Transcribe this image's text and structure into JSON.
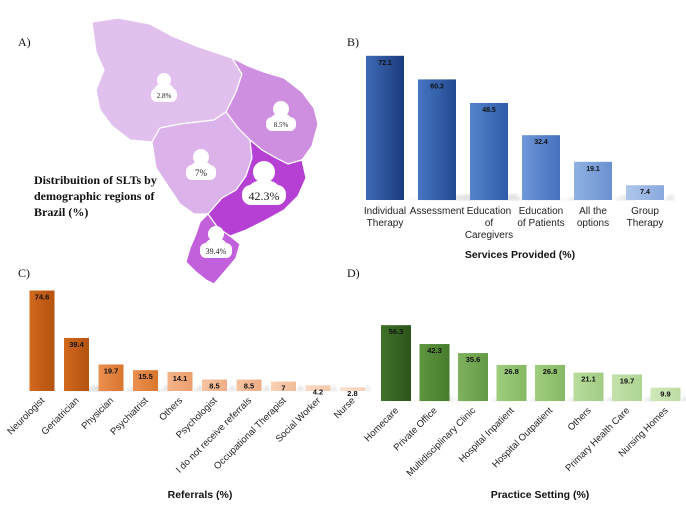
{
  "panels": {
    "a": "A)",
    "b": "B)",
    "c": "C)",
    "d": "D)"
  },
  "map": {
    "title_lines": [
      "Distribuition of SLTs by",
      "demographic regions of",
      "Brazil (%)"
    ],
    "regions": [
      {
        "name": "North",
        "label": "2.8%",
        "color": "#e2c0ee"
      },
      {
        "name": "Northeast",
        "label": "8.5%",
        "color": "#cf8fe1"
      },
      {
        "name": "Central-West",
        "label": "7%",
        "color": "#dcb2ea"
      },
      {
        "name": "Southeast",
        "label": "42.3%",
        "color": "#b640d3"
      },
      {
        "name": "South",
        "label": "39.4%",
        "color": "#c160da"
      }
    ]
  },
  "chart_data": [
    {
      "type": "bar",
      "panel": "B",
      "title": "",
      "xlabel": "Services Provided (%)",
      "ylabel": "",
      "ylim": [
        0,
        75
      ],
      "categories": [
        [
          "Individual",
          "Therapy"
        ],
        [
          "Assessment"
        ],
        [
          "Education",
          "of",
          "Caregivers"
        ],
        [
          "Education",
          "of Patients"
        ],
        [
          "All the",
          "options"
        ],
        [
          "Group",
          "Therapy"
        ]
      ],
      "values": [
        72.1,
        60.3,
        48.5,
        32.4,
        19.1,
        7.4
      ],
      "value_labels": [
        "72.1",
        "60.3",
        "48.5",
        "32.4",
        "19.1",
        "7.4"
      ],
      "colors": [
        [
          "#3e6ab6",
          "#1b3b7c"
        ],
        [
          "#4676c2",
          "#234a92"
        ],
        [
          "#5584cc",
          "#2f5ba8"
        ],
        [
          "#6e98d7",
          "#4470bf"
        ],
        [
          "#90b2e2",
          "#6a90d0"
        ],
        [
          "#afc7ec",
          "#8aa8de"
        ]
      ]
    },
    {
      "type": "bar",
      "panel": "C",
      "title": "",
      "xlabel": "Referrals (%)",
      "ylabel": "",
      "ylim": [
        0,
        75
      ],
      "categories": [
        "Neurologist",
        "Geriatrician",
        "Physician",
        "Psychiatrist",
        "Others",
        "Psychologist",
        "I do not receive referrals",
        "Occupational Therapist",
        "Social Worker",
        "Nurse"
      ],
      "values": [
        74.6,
        39.4,
        19.7,
        15.5,
        14.1,
        8.5,
        8.5,
        7,
        4.2,
        2.8
      ],
      "value_labels": [
        "74.6",
        "39.4",
        "19.7",
        "15.5",
        "14.1",
        "8.5",
        "8.5",
        "7",
        "4.2",
        "2.8"
      ],
      "colors": [
        [
          "#d2691e",
          "#b4520f"
        ],
        [
          "#d2691e",
          "#b4520f"
        ],
        [
          "#ec9050",
          "#d9752e"
        ],
        [
          "#ec9050",
          "#d9752e"
        ],
        [
          "#f4b48a",
          "#eb9e6c"
        ],
        [
          "#f6c3a0",
          "#efad85"
        ],
        [
          "#f6c3a0",
          "#efad85"
        ],
        [
          "#f8d0b4",
          "#f2bc98"
        ],
        [
          "#fad9c3",
          "#f4c7a9"
        ],
        [
          "#fbe2d0",
          "#f6d2b9"
        ]
      ]
    },
    {
      "type": "bar",
      "panel": "D",
      "title": "",
      "xlabel": "Practice Setting (%)",
      "ylabel": "",
      "ylim": [
        0,
        75
      ],
      "categories": [
        "Homecare",
        "Private Office",
        "Multidisciplinary Clinic",
        "Hospital Inpatient",
        "Hospital Outpatient",
        "Others",
        "Primary Health Care",
        "Nursing Homes"
      ],
      "values": [
        56.3,
        42.3,
        35.6,
        26.8,
        26.8,
        21.1,
        19.7,
        9.9
      ],
      "value_labels": [
        "56.3",
        "42.3",
        "35.6",
        "26.8",
        "26.8",
        "21.1",
        "19.7",
        "9.9"
      ],
      "colors": [
        [
          "#40732a",
          "#2c5419"
        ],
        [
          "#5e9640",
          "#467b2c"
        ],
        [
          "#7fb25e",
          "#649a45"
        ],
        [
          "#9fce7e",
          "#86b964"
        ],
        [
          "#9fce7e",
          "#86b964"
        ],
        [
          "#b8dc9c",
          "#a2cc84"
        ],
        [
          "#c3e2aa",
          "#aed494"
        ],
        [
          "#cfe8ba",
          "#bcdca3"
        ]
      ]
    }
  ]
}
